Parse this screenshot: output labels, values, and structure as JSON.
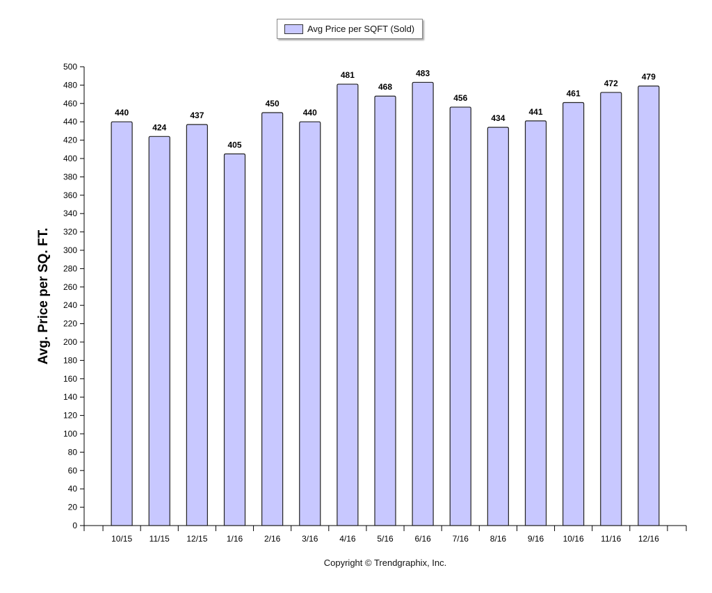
{
  "chart_data": {
    "type": "bar",
    "categories": [
      "10/15",
      "11/15",
      "12/15",
      "1/16",
      "2/16",
      "3/16",
      "4/16",
      "5/16",
      "6/16",
      "7/16",
      "8/16",
      "9/16",
      "10/16",
      "11/16",
      "12/16"
    ],
    "series": [
      {
        "name": "Avg Price per SQFT (Sold)",
        "values": [
          440,
          424,
          437,
          405,
          450,
          440,
          481,
          468,
          483,
          456,
          434,
          441,
          461,
          472,
          479
        ]
      }
    ],
    "ylabel": "Avg. Price per SQ. FT.",
    "xlabel": "",
    "ylim": [
      0,
      500
    ],
    "ytick_step": 20,
    "legend": "top-center",
    "grid": false,
    "bar_color": "#c8c8ff",
    "bar_stroke": "#222222"
  },
  "footer": {
    "copyright": "Copyright © Trendgraphix, Inc."
  }
}
